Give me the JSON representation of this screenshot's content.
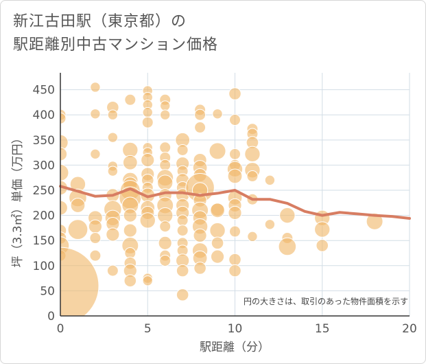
{
  "title_lines": [
    "新江古田駅（東京都）の",
    "駅距離別中古マンション価格"
  ],
  "chart_data": {
    "type": "scatter",
    "title": "新江古田駅（東京都）の駅距離別中古マンション価格",
    "xlabel": "駅距離（分）",
    "ylabel": "坪（3.3㎡）単価（万円）",
    "xlim": [
      0,
      20
    ],
    "ylim": [
      0,
      470
    ],
    "x_ticks": [
      0,
      5,
      10,
      15,
      20
    ],
    "y_ticks": [
      0,
      50,
      100,
      150,
      200,
      250,
      300,
      350,
      400,
      450
    ],
    "grid": true,
    "note": "円の大きさは、取引のあった物件面積を示す",
    "colors": {
      "bubble": "#f0b86a",
      "trend": "#d77d62",
      "grid": "#d2dde6",
      "text": "#555555"
    },
    "bubbles": [
      {
        "x": 0,
        "y": 400,
        "s": 1
      },
      {
        "x": 0,
        "y": 393,
        "s": 1
      },
      {
        "x": 0,
        "y": 345,
        "s": 1.4
      },
      {
        "x": 0,
        "y": 322,
        "s": 1.2
      },
      {
        "x": 0,
        "y": 285,
        "s": 1.5
      },
      {
        "x": 0,
        "y": 255,
        "s": 1.3
      },
      {
        "x": 0,
        "y": 215,
        "s": 1.3
      },
      {
        "x": 0,
        "y": 170,
        "s": 1.1
      },
      {
        "x": 0,
        "y": 155,
        "s": 1.1
      },
      {
        "x": 0,
        "y": 140,
        "s": 1.6
      },
      {
        "x": 0,
        "y": 120,
        "s": 1
      },
      {
        "x": 0,
        "y": 60,
        "s": 7
      },
      {
        "x": 1,
        "y": 262,
        "s": 1.4
      },
      {
        "x": 1,
        "y": 235,
        "s": 1.6
      },
      {
        "x": 1,
        "y": 220,
        "s": 1.3
      },
      {
        "x": 1,
        "y": 172,
        "s": 1.8
      },
      {
        "x": 2,
        "y": 455,
        "s": 0.9
      },
      {
        "x": 2,
        "y": 402,
        "s": 0.9
      },
      {
        "x": 2,
        "y": 322,
        "s": 0.9
      },
      {
        "x": 2,
        "y": 195,
        "s": 1.3
      },
      {
        "x": 2,
        "y": 178,
        "s": 1.2
      },
      {
        "x": 2,
        "y": 155,
        "s": 1
      },
      {
        "x": 2,
        "y": 120,
        "s": 1
      },
      {
        "x": 3,
        "y": 415,
        "s": 1.1
      },
      {
        "x": 3,
        "y": 400,
        "s": 0.9
      },
      {
        "x": 3,
        "y": 355,
        "s": 0.9
      },
      {
        "x": 3,
        "y": 298,
        "s": 0.9
      },
      {
        "x": 3,
        "y": 288,
        "s": 0.9
      },
      {
        "x": 3,
        "y": 240,
        "s": 1.2
      },
      {
        "x": 3,
        "y": 212,
        "s": 1.6
      },
      {
        "x": 3,
        "y": 195,
        "s": 1.4
      },
      {
        "x": 3,
        "y": 183,
        "s": 1.2
      },
      {
        "x": 3,
        "y": 162,
        "s": 1.2
      },
      {
        "x": 3,
        "y": 90,
        "s": 1
      },
      {
        "x": 4,
        "y": 430,
        "s": 1
      },
      {
        "x": 4,
        "y": 330,
        "s": 1.4
      },
      {
        "x": 4,
        "y": 305,
        "s": 1.3
      },
      {
        "x": 4,
        "y": 270,
        "s": 1.4
      },
      {
        "x": 4,
        "y": 262,
        "s": 1.3
      },
      {
        "x": 4,
        "y": 250,
        "s": 1.8
      },
      {
        "x": 4,
        "y": 235,
        "s": 2
      },
      {
        "x": 4,
        "y": 220,
        "s": 1.5
      },
      {
        "x": 4,
        "y": 200,
        "s": 1.2
      },
      {
        "x": 4,
        "y": 170,
        "s": 1.2
      },
      {
        "x": 4,
        "y": 140,
        "s": 1.5
      },
      {
        "x": 4,
        "y": 125,
        "s": 1
      },
      {
        "x": 4,
        "y": 105,
        "s": 1.1
      },
      {
        "x": 4,
        "y": 90,
        "s": 1.2
      },
      {
        "x": 4,
        "y": 70,
        "s": 1.1
      },
      {
        "x": 5,
        "y": 448,
        "s": 0.9
      },
      {
        "x": 5,
        "y": 435,
        "s": 0.9
      },
      {
        "x": 5,
        "y": 420,
        "s": 0.9
      },
      {
        "x": 5,
        "y": 405,
        "s": 0.9
      },
      {
        "x": 5,
        "y": 385,
        "s": 1
      },
      {
        "x": 5,
        "y": 335,
        "s": 0.9
      },
      {
        "x": 5,
        "y": 325,
        "s": 0.9
      },
      {
        "x": 5,
        "y": 310,
        "s": 1.2
      },
      {
        "x": 5,
        "y": 282,
        "s": 1.2
      },
      {
        "x": 5,
        "y": 270,
        "s": 1.1
      },
      {
        "x": 5,
        "y": 255,
        "s": 1
      },
      {
        "x": 5,
        "y": 240,
        "s": 1.3
      },
      {
        "x": 5,
        "y": 215,
        "s": 1.3
      },
      {
        "x": 5,
        "y": 205,
        "s": 1.2
      },
      {
        "x": 5,
        "y": 190,
        "s": 1.4
      },
      {
        "x": 5,
        "y": 75,
        "s": 0.9
      },
      {
        "x": 5,
        "y": 70,
        "s": 0.9
      },
      {
        "x": 6,
        "y": 430,
        "s": 1
      },
      {
        "x": 6,
        "y": 418,
        "s": 0.9
      },
      {
        "x": 6,
        "y": 400,
        "s": 0.9
      },
      {
        "x": 6,
        "y": 335,
        "s": 1
      },
      {
        "x": 6,
        "y": 315,
        "s": 1
      },
      {
        "x": 6,
        "y": 300,
        "s": 1
      },
      {
        "x": 6,
        "y": 275,
        "s": 1.5
      },
      {
        "x": 6,
        "y": 265,
        "s": 1.4
      },
      {
        "x": 6,
        "y": 240,
        "s": 1.2
      },
      {
        "x": 6,
        "y": 220,
        "s": 1.5
      },
      {
        "x": 6,
        "y": 200,
        "s": 1.4
      },
      {
        "x": 6,
        "y": 178,
        "s": 1
      },
      {
        "x": 6,
        "y": 145,
        "s": 1.2
      },
      {
        "x": 6,
        "y": 120,
        "s": 1
      },
      {
        "x": 6,
        "y": 110,
        "s": 1
      },
      {
        "x": 7,
        "y": 350,
        "s": 1.3
      },
      {
        "x": 7,
        "y": 330,
        "s": 1
      },
      {
        "x": 7,
        "y": 303,
        "s": 1.2
      },
      {
        "x": 7,
        "y": 288,
        "s": 1
      },
      {
        "x": 7,
        "y": 270,
        "s": 1.2
      },
      {
        "x": 7,
        "y": 255,
        "s": 1.1
      },
      {
        "x": 7,
        "y": 240,
        "s": 1.2
      },
      {
        "x": 7,
        "y": 220,
        "s": 1.2
      },
      {
        "x": 7,
        "y": 205,
        "s": 1.2
      },
      {
        "x": 7,
        "y": 190,
        "s": 1
      },
      {
        "x": 7,
        "y": 170,
        "s": 1
      },
      {
        "x": 7,
        "y": 145,
        "s": 1
      },
      {
        "x": 7,
        "y": 130,
        "s": 1
      },
      {
        "x": 7,
        "y": 110,
        "s": 1.2
      },
      {
        "x": 7,
        "y": 90,
        "s": 1.1
      },
      {
        "x": 7,
        "y": 42,
        "s": 1.1
      },
      {
        "x": 8,
        "y": 410,
        "s": 1
      },
      {
        "x": 8,
        "y": 400,
        "s": 1
      },
      {
        "x": 8,
        "y": 375,
        "s": 1
      },
      {
        "x": 8,
        "y": 310,
        "s": 1.2
      },
      {
        "x": 8,
        "y": 295,
        "s": 1.3
      },
      {
        "x": 8,
        "y": 280,
        "s": 1.2
      },
      {
        "x": 8,
        "y": 255,
        "s": 2.6
      },
      {
        "x": 8,
        "y": 250,
        "s": 1.4
      },
      {
        "x": 8,
        "y": 230,
        "s": 1.2
      },
      {
        "x": 8,
        "y": 210,
        "s": 1.5
      },
      {
        "x": 8,
        "y": 195,
        "s": 1.3
      },
      {
        "x": 8,
        "y": 178,
        "s": 1.4
      },
      {
        "x": 8,
        "y": 160,
        "s": 1.2
      },
      {
        "x": 8,
        "y": 130,
        "s": 1.4
      },
      {
        "x": 8,
        "y": 115,
        "s": 1.3
      },
      {
        "x": 8,
        "y": 95,
        "s": 1.1
      },
      {
        "x": 9,
        "y": 402,
        "s": 0.9
      },
      {
        "x": 9,
        "y": 328,
        "s": 1.5
      },
      {
        "x": 9,
        "y": 212,
        "s": 1.2
      },
      {
        "x": 9,
        "y": 210,
        "s": 1.3
      },
      {
        "x": 9,
        "y": 170,
        "s": 1.4
      },
      {
        "x": 9,
        "y": 145,
        "s": 1.1
      },
      {
        "x": 9,
        "y": 118,
        "s": 1.2
      },
      {
        "x": 10,
        "y": 442,
        "s": 1.1
      },
      {
        "x": 10,
        "y": 390,
        "s": 1
      },
      {
        "x": 10,
        "y": 322,
        "s": 1
      },
      {
        "x": 10,
        "y": 300,
        "s": 1
      },
      {
        "x": 10,
        "y": 292,
        "s": 1.4
      },
      {
        "x": 10,
        "y": 278,
        "s": 1.3
      },
      {
        "x": 10,
        "y": 235,
        "s": 1.3
      },
      {
        "x": 10,
        "y": 220,
        "s": 1.2
      },
      {
        "x": 10,
        "y": 205,
        "s": 1.2
      },
      {
        "x": 10,
        "y": 168,
        "s": 1
      },
      {
        "x": 10,
        "y": 112,
        "s": 1.1
      },
      {
        "x": 10,
        "y": 90,
        "s": 1.1
      },
      {
        "x": 11,
        "y": 372,
        "s": 1
      },
      {
        "x": 11,
        "y": 362,
        "s": 1
      },
      {
        "x": 11,
        "y": 345,
        "s": 1.1
      },
      {
        "x": 11,
        "y": 322,
        "s": 1.4
      },
      {
        "x": 11,
        "y": 290,
        "s": 1.4
      },
      {
        "x": 11,
        "y": 278,
        "s": 1
      },
      {
        "x": 11,
        "y": 232,
        "s": 1
      },
      {
        "x": 11,
        "y": 158,
        "s": 0.9
      },
      {
        "x": 12,
        "y": 270,
        "s": 0.9
      },
      {
        "x": 12,
        "y": 182,
        "s": 0.9
      },
      {
        "x": 13,
        "y": 200,
        "s": 1.4
      },
      {
        "x": 13,
        "y": 155,
        "s": 1
      },
      {
        "x": 13,
        "y": 138,
        "s": 1.6
      },
      {
        "x": 15,
        "y": 195,
        "s": 1.4
      },
      {
        "x": 15,
        "y": 172,
        "s": 1.4
      },
      {
        "x": 15,
        "y": 140,
        "s": 1.1
      },
      {
        "x": 18,
        "y": 188,
        "s": 1.5
      }
    ],
    "trend": {
      "x": [
        0,
        1,
        2,
        3,
        4,
        5,
        6,
        7,
        8,
        9,
        10,
        11,
        12,
        13,
        14,
        15,
        16,
        17,
        18,
        19,
        20
      ],
      "y": [
        258,
        248,
        238,
        240,
        253,
        237,
        245,
        245,
        240,
        244,
        250,
        232,
        232,
        224,
        208,
        200,
        206,
        203,
        200,
        198,
        194
      ]
    }
  }
}
